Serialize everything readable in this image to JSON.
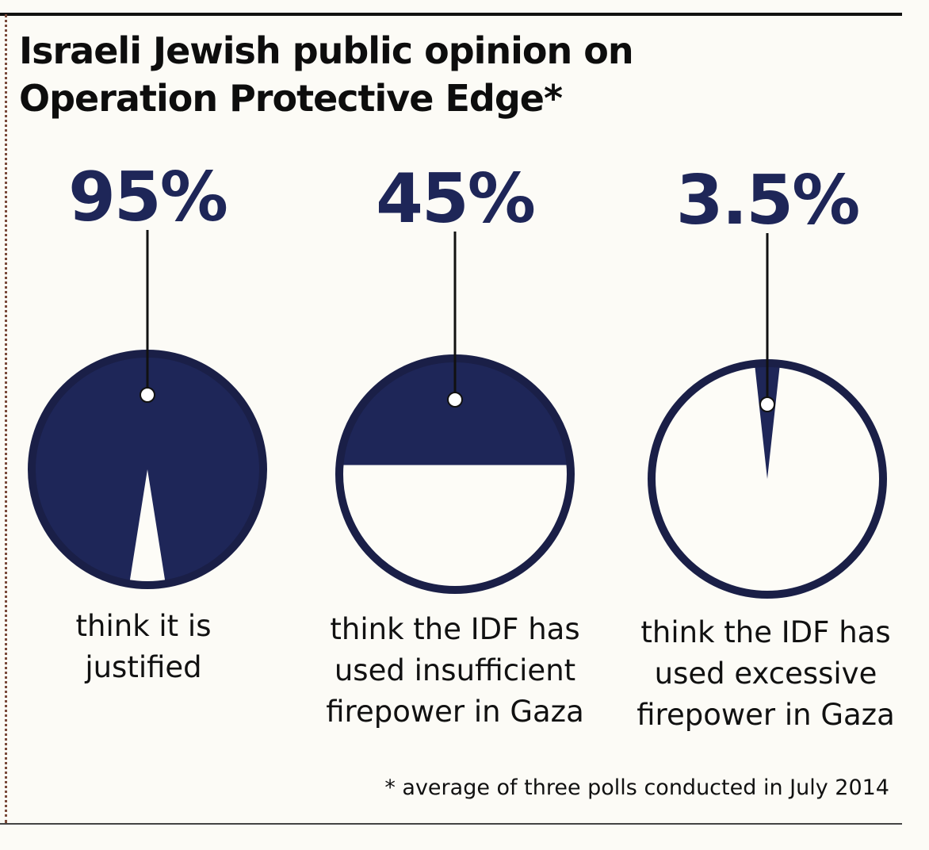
{
  "chart_data": {
    "type": "pie",
    "title_lines": [
      "Israeli Jewish public opinion on",
      "Operation Protective Edge*"
    ],
    "series": [
      {
        "name": "justified",
        "value": 95,
        "value_label": "95%",
        "label_lines": [
          "think it is",
          "justified"
        ]
      },
      {
        "name": "insufficient-firepower",
        "value": 45,
        "value_label": "45%",
        "label_lines": [
          "think the IDF has",
          "used insufficient",
          "firepower in Gaza"
        ]
      },
      {
        "name": "excessive-firepower",
        "value": 3.5,
        "value_label": "3.5%",
        "label_lines": [
          "think the IDF has",
          "used excessive",
          "firepower in Gaza"
        ]
      }
    ],
    "footnote": "* average of three polls conducted in July 2014"
  },
  "colors": {
    "fill": "#1e2658",
    "empty": "#fdfcf7",
    "outline": "#1a1f47",
    "text": "#111111"
  }
}
